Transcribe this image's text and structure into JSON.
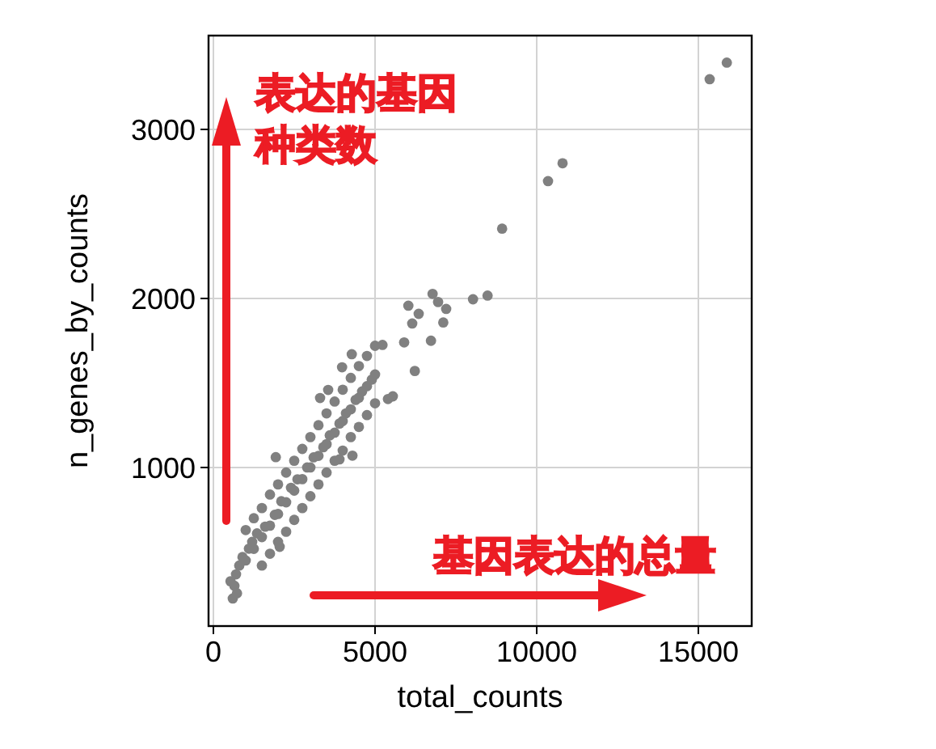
{
  "chart_data": {
    "type": "scatter",
    "xlabel": "total_counts",
    "ylabel": "n_genes_by_counts",
    "xlim": [
      -150,
      16650
    ],
    "ylim": [
      62,
      3555
    ],
    "xticks": [
      0,
      5000,
      10000,
      15000
    ],
    "yticks": [
      1000,
      2000,
      3000
    ],
    "grid": true,
    "marker": "circle",
    "annotations": [
      "表达的基因种类数",
      "基因表达的总量"
    ],
    "series": [
      {
        "color": "#808080",
        "x": [
          530,
          600,
          650,
          700,
          730,
          800,
          900,
          1000,
          1000,
          1100,
          1200,
          1250,
          1250,
          1350,
          1500,
          1500,
          1500,
          1600,
          1750,
          1750,
          1750,
          1900,
          2000,
          2000,
          2000,
          2050,
          2100,
          2250,
          2250,
          2250,
          2400,
          2500,
          2500,
          2500,
          2600,
          2750,
          2750,
          2750,
          2900,
          3000,
          3000,
          3000,
          3100,
          3250,
          3250,
          3250,
          3300,
          3400,
          3500,
          3500,
          3500,
          3550,
          3600,
          3750,
          3750,
          3750,
          3900,
          3980,
          4000,
          4000,
          4000,
          4100,
          4250,
          4250,
          4250,
          4280,
          4300,
          4400,
          4500,
          4500,
          4500,
          4600,
          4750,
          4750,
          4750,
          4900,
          5000,
          5000,
          5000,
          5230,
          5400,
          5550,
          5900,
          6030,
          6150,
          6230,
          6350,
          6730,
          6780,
          6950,
          7110,
          7200,
          8030,
          8480,
          8930,
          10350,
          10800,
          15350,
          15880,
          1930,
          3900
        ],
        "values": [
          327,
          225,
          300,
          368,
          256,
          420,
          470,
          450,
          630,
          520,
          560,
          519,
          700,
          610,
          588,
          760,
          420,
          650,
          656,
          840,
          490,
          720,
          725,
          900,
          560,
          531,
          800,
          794,
          970,
          620,
          880,
          863,
          1040,
          690,
          930,
          931,
          1110,
          760,
          1000,
          1000,
          1180,
          830,
          1060,
          1069,
          1250,
          900,
          1411,
          1120,
          1138,
          1320,
          970,
          1459,
          1190,
          1206,
          1390,
          1040,
          1260,
          1593,
          1275,
          1460,
          1100,
          1320,
          1344,
          1530,
          1180,
          1670,
          1070,
          1400,
          1413,
          1600,
          1240,
          1450,
          1481,
          1660,
          1310,
          1520,
          1550,
          1720,
          1380,
          1725,
          1405,
          1421,
          1740,
          1957,
          1852,
          1571,
          1909,
          1750,
          2027,
          1979,
          1858,
          1938,
          1995,
          2017,
          2413,
          2694,
          2800,
          3297,
          3395,
          1061,
          1048
        ]
      }
    ]
  }
}
